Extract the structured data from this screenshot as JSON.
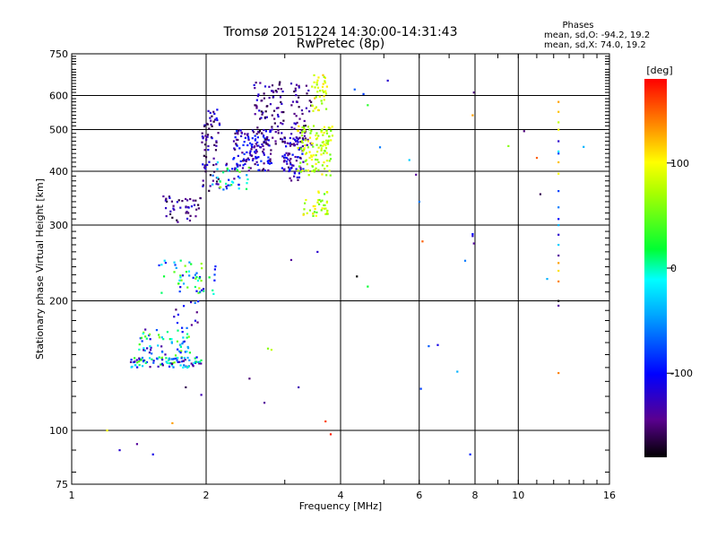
{
  "chart_data": {
    "type": "scatter",
    "title": "Tromsø 20151224 14:30:00-14:31:43",
    "subtitle": "RwPretec (8p)",
    "stats_title": "Phases",
    "stats_line1": "mean, sd,O: -94.2, 19.2",
    "stats_line2": "mean, sd,X: 74.0, 19.2",
    "xlabel": "Frequency [MHz]",
    "ylabel": "Stationary phase Virtual Height [km]",
    "x_scale": "log2",
    "y_scale": "log",
    "xlim": [
      1,
      16
    ],
    "ylim": [
      75,
      750
    ],
    "x_ticks": [
      1,
      2,
      4,
      6,
      8,
      10,
      16
    ],
    "x_tick_labels": [
      "1",
      "2",
      "4",
      "6",
      "8",
      "10",
      "16"
    ],
    "x_gridlines": [
      2,
      4,
      6,
      8,
      10
    ],
    "y_ticks": [
      75,
      100,
      200,
      300,
      400,
      500,
      600,
      750
    ],
    "y_tick_labels": [
      "75",
      "100",
      "200",
      "300",
      "400",
      "500",
      "600",
      "750"
    ],
    "y_gridlines": [
      100,
      200,
      300,
      400,
      500,
      600
    ],
    "colorbar": {
      "label": "[deg]",
      "range": [
        -180,
        180
      ],
      "ticks": [
        100,
        0,
        -100
      ],
      "tick_labels": [
        "100",
        "0",
        "-100"
      ]
    },
    "series": [
      {
        "points": [
          [
            1.2,
            100,
            100
          ],
          [
            1.28,
            90,
            -120
          ],
          [
            1.4,
            93,
            -140
          ],
          [
            1.52,
            88,
            -110
          ],
          [
            1.68,
            104,
            130
          ],
          [
            1.8,
            126,
            -160
          ],
          [
            1.95,
            121,
            -130
          ],
          [
            2.5,
            132,
            -150
          ],
          [
            2.7,
            116,
            -140
          ],
          [
            2.75,
            155,
            60
          ],
          [
            2.8,
            154,
            80
          ],
          [
            3.1,
            249,
            -140
          ],
          [
            3.22,
            126,
            -130
          ],
          [
            3.55,
            260,
            -120
          ],
          [
            3.7,
            105,
            160
          ],
          [
            3.8,
            98,
            170
          ],
          [
            4.35,
            228,
            -180
          ],
          [
            4.6,
            216,
            20
          ],
          [
            4.3,
            620,
            -70
          ],
          [
            4.5,
            605,
            -80
          ],
          [
            4.6,
            570,
            30
          ],
          [
            4.9,
            455,
            -60
          ],
          [
            5.1,
            650,
            -120
          ],
          [
            5.7,
            425,
            -30
          ],
          [
            5.9,
            393,
            -140
          ],
          [
            6.0,
            340,
            -60
          ],
          [
            6.1,
            275,
            150
          ],
          [
            6.05,
            125,
            -80
          ],
          [
            6.3,
            157,
            -70
          ],
          [
            6.6,
            158,
            -110
          ],
          [
            7.3,
            137,
            -40
          ],
          [
            7.6,
            248,
            -60
          ],
          [
            7.8,
            88,
            -90
          ],
          [
            7.9,
            283,
            -120
          ],
          [
            7.9,
            286,
            -100
          ],
          [
            7.95,
            272,
            -140
          ],
          [
            7.9,
            540,
            130
          ],
          [
            7.95,
            610,
            -150
          ],
          [
            9.5,
            458,
            60
          ],
          [
            10.3,
            496,
            -150
          ],
          [
            11.0,
            430,
            150
          ],
          [
            11.2,
            354,
            -160
          ],
          [
            11.6,
            225,
            -40
          ],
          [
            14.0,
            456,
            -40
          ],
          [
            12.3,
            580,
            130
          ],
          [
            12.3,
            550,
            120
          ],
          [
            12.3,
            520,
            80
          ],
          [
            12.3,
            500,
            100
          ],
          [
            12.3,
            470,
            -120
          ],
          [
            12.3,
            445,
            -20
          ],
          [
            12.3,
            440,
            -80
          ],
          [
            12.3,
            420,
            120
          ],
          [
            12.3,
            395,
            100
          ],
          [
            12.3,
            360,
            -80
          ],
          [
            12.3,
            330,
            -60
          ],
          [
            12.3,
            310,
            -100
          ],
          [
            12.3,
            300,
            -40
          ],
          [
            12.3,
            285,
            -120
          ],
          [
            12.3,
            270,
            -30
          ],
          [
            12.3,
            255,
            -140
          ],
          [
            12.3,
            245,
            130
          ],
          [
            12.3,
            235,
            110
          ],
          [
            12.3,
            222,
            140
          ],
          [
            12.3,
            200,
            -180
          ],
          [
            12.3,
            195,
            -140
          ],
          [
            12.3,
            136,
            140
          ]
        ]
      }
    ],
    "clusters": [
      {
        "x": [
          1.35,
          1.95
        ],
        "y": [
          140,
          148
        ],
        "n": 95,
        "hue": [
          -150,
          60
        ],
        "seed": 11
      },
      {
        "x": [
          1.4,
          1.85
        ],
        "y": [
          148,
          172
        ],
        "n": 60,
        "hue": [
          -140,
          70
        ],
        "seed": 12
      },
      {
        "x": [
          1.55,
          2.1
        ],
        "y": [
          207,
          250
        ],
        "n": 55,
        "hue": [
          -120,
          80
        ],
        "seed": 13
      },
      {
        "x": [
          1.65,
          2.05
        ],
        "y": [
          170,
          205
        ],
        "n": 14,
        "hue": [
          -160,
          -60
        ],
        "seed": 14
      },
      {
        "x": [
          1.6,
          1.95
        ],
        "y": [
          305,
          350
        ],
        "n": 45,
        "hue": [
          -170,
          -110
        ],
        "seed": 15
      },
      {
        "x": [
          1.95,
          2.15
        ],
        "y": [
          360,
          560
        ],
        "n": 70,
        "hue": [
          -170,
          -100
        ],
        "seed": 16
      },
      {
        "x": [
          2.05,
          2.5
        ],
        "y": [
          360,
          420
        ],
        "n": 45,
        "hue": [
          -150,
          80
        ],
        "seed": 17
      },
      {
        "x": [
          2.3,
          2.8
        ],
        "y": [
          400,
          500
        ],
        "n": 130,
        "hue": [
          -160,
          -80
        ],
        "seed": 18
      },
      {
        "x": [
          2.55,
          3.0
        ],
        "y": [
          450,
          650
        ],
        "n": 90,
        "hue": [
          -170,
          -110
        ],
        "seed": 19
      },
      {
        "x": [
          2.95,
          3.3
        ],
        "y": [
          380,
          480
        ],
        "n": 90,
        "hue": [
          -160,
          -90
        ],
        "seed": 20
      },
      {
        "x": [
          3.1,
          3.45
        ],
        "y": [
          460,
          640
        ],
        "n": 50,
        "hue": [
          -165,
          -120
        ],
        "seed": 21
      },
      {
        "x": [
          3.2,
          3.85
        ],
        "y": [
          390,
          510
        ],
        "n": 120,
        "hue": [
          50,
          110
        ],
        "seed": 22
      },
      {
        "x": [
          3.45,
          3.75
        ],
        "y": [
          550,
          670
        ],
        "n": 40,
        "hue": [
          60,
          120
        ],
        "seed": 23
      },
      {
        "x": [
          3.3,
          3.75
        ],
        "y": [
          315,
          360
        ],
        "n": 40,
        "hue": [
          40,
          110
        ],
        "seed": 24
      }
    ]
  }
}
